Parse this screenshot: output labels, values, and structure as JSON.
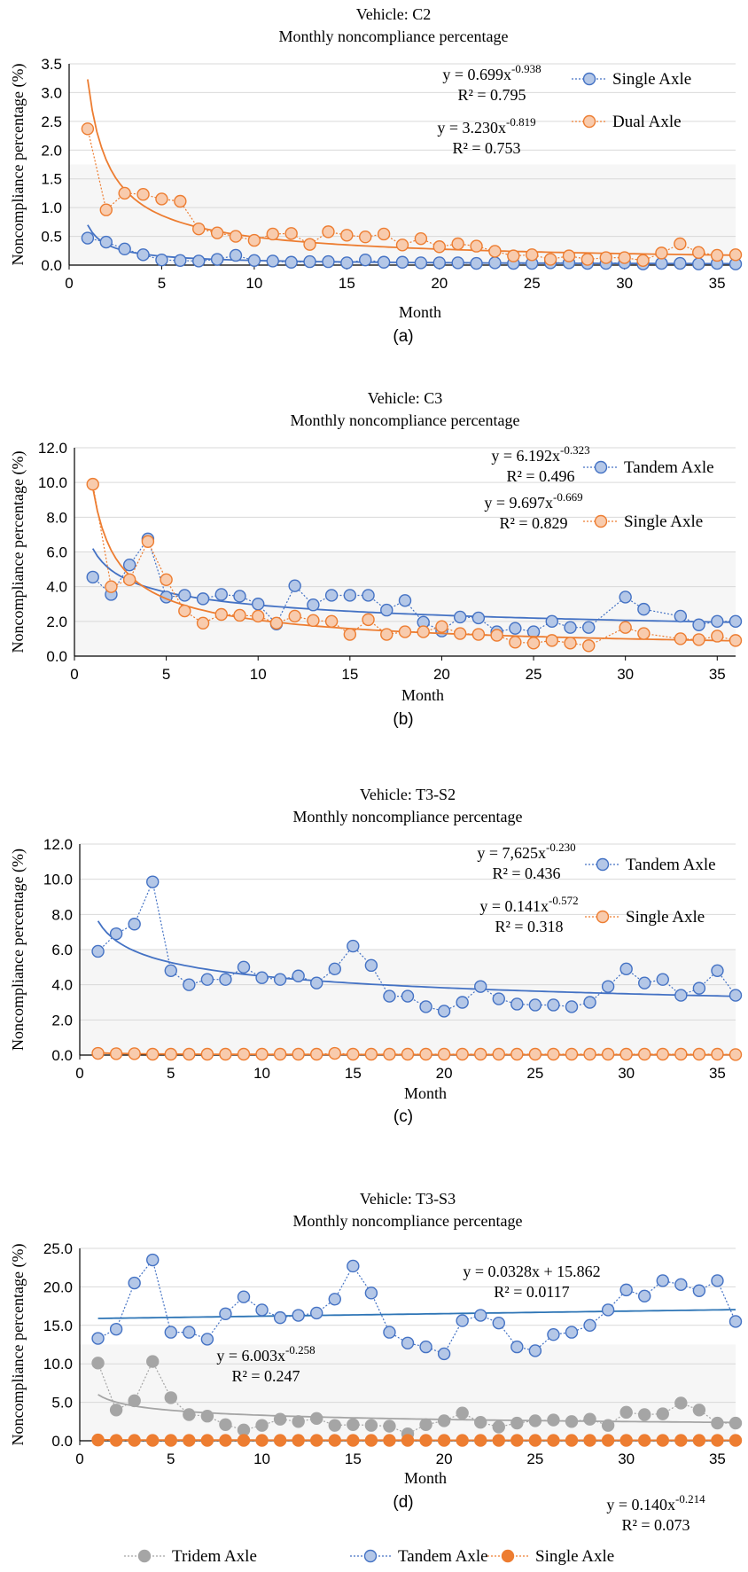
{
  "chart_data": [
    {
      "type": "scatter",
      "panel_label": "(a)",
      "title": "Vehicle: C2",
      "subtitle": "Monthly noncompliance percentage",
      "xlabel": "Month",
      "ylabel": "Noncompliance percentage (%)",
      "xlim": [
        0,
        36
      ],
      "ylim": [
        0,
        3.5
      ],
      "xticks": [
        "0",
        "5",
        "10",
        "15",
        "20",
        "25",
        "30",
        "35"
      ],
      "yticks": [
        "0.0",
        "0.5",
        "1.0",
        "1.5",
        "2.0",
        "2.5",
        "3.0",
        "3.5"
      ],
      "grid": true,
      "legend_placement": "right",
      "series": [
        {
          "name": "Single Axle",
          "color": "#4472c4",
          "fill": "#b4c7e7",
          "x": [
            1,
            2,
            3,
            4,
            5,
            6,
            7,
            8,
            9,
            10,
            11,
            12,
            13,
            14,
            15,
            16,
            17,
            18,
            19,
            20,
            21,
            22,
            23,
            24,
            25,
            26,
            27,
            28,
            29,
            30,
            31,
            32,
            33,
            34,
            35,
            36
          ],
          "values": [
            0.47,
            0.4,
            0.28,
            0.18,
            0.09,
            0.08,
            0.07,
            0.1,
            0.17,
            0.08,
            0.07,
            0.05,
            0.06,
            0.06,
            0.04,
            0.09,
            0.05,
            0.05,
            0.04,
            0.04,
            0.04,
            0.03,
            0.04,
            0.03,
            0.03,
            0.04,
            0.04,
            0.03,
            0.03,
            0.04,
            0.02,
            0.03,
            0.03,
            0.02,
            0.03,
            0.02
          ],
          "trend": {
            "a": 0.699,
            "b": -0.938
          },
          "equation": {
            "pre": "y = 0.699x",
            "exp": "-0.938",
            "r2": "R² = 0.795"
          }
        },
        {
          "name": "Dual Axle",
          "color": "#ed7d31",
          "fill": "#f8cbad",
          "x": [
            1,
            2,
            3,
            4,
            5,
            6,
            7,
            8,
            9,
            10,
            11,
            12,
            13,
            14,
            15,
            16,
            17,
            18,
            19,
            20,
            21,
            22,
            23,
            24,
            25,
            26,
            27,
            28,
            29,
            30,
            31,
            32,
            33,
            34,
            35,
            36
          ],
          "values": [
            2.37,
            0.96,
            1.25,
            1.23,
            1.15,
            1.11,
            0.63,
            0.56,
            0.5,
            0.43,
            0.54,
            0.55,
            0.36,
            0.58,
            0.52,
            0.49,
            0.54,
            0.35,
            0.46,
            0.32,
            0.37,
            0.33,
            0.24,
            0.16,
            0.18,
            0.1,
            0.16,
            0.1,
            0.13,
            0.13,
            0.08,
            0.21,
            0.37,
            0.22,
            0.17,
            0.18
          ],
          "trend": {
            "a": 3.23,
            "b": -0.819
          },
          "equation": {
            "pre": "y = 3.230x",
            "exp": "-0.819",
            "r2": "R² = 0.753"
          }
        }
      ]
    },
    {
      "type": "scatter",
      "panel_label": "(b)",
      "title": "Vehicle: C3",
      "subtitle": "Monthly noncompliance percentage",
      "xlabel": "Month",
      "ylabel": "Noncompliance percentage (%)",
      "xlim": [
        0,
        36
      ],
      "ylim": [
        0,
        12
      ],
      "xticks": [
        "0",
        "5",
        "10",
        "15",
        "20",
        "25",
        "30",
        "35"
      ],
      "yticks": [
        "0.0",
        "2.0",
        "4.0",
        "6.0",
        "8.0",
        "10.0",
        "12.0"
      ],
      "grid": true,
      "legend_placement": "right",
      "series": [
        {
          "name": "Tandem Axle",
          "color": "#4472c4",
          "fill": "#b4c7e7",
          "x": [
            1,
            2,
            3,
            4,
            5,
            6,
            7,
            8,
            9,
            10,
            11,
            12,
            13,
            14,
            15,
            16,
            17,
            18,
            19,
            20,
            21,
            22,
            23,
            24,
            25,
            26,
            27,
            28,
            30,
            31,
            33,
            34,
            35,
            36
          ],
          "values": [
            4.55,
            3.55,
            5.25,
            6.75,
            3.4,
            3.5,
            3.3,
            3.55,
            3.45,
            3.0,
            1.85,
            4.05,
            2.95,
            3.5,
            3.5,
            3.5,
            2.65,
            3.2,
            1.95,
            1.45,
            2.25,
            2.2,
            1.4,
            1.6,
            1.4,
            2.0,
            1.65,
            1.65,
            3.4,
            2.7,
            2.3,
            1.8,
            2.0,
            2.0
          ],
          "trend": {
            "a": 6.192,
            "b": -0.323
          },
          "equation": {
            "pre": "y = 6.192x",
            "exp": "-0.323",
            "r2": "R² = 0.496"
          }
        },
        {
          "name": "Single Axle",
          "color": "#ed7d31",
          "fill": "#f8cbad",
          "x": [
            1,
            2,
            3,
            4,
            5,
            6,
            7,
            8,
            9,
            10,
            11,
            12,
            13,
            14,
            15,
            16,
            17,
            18,
            19,
            20,
            21,
            22,
            23,
            24,
            25,
            26,
            27,
            28,
            30,
            31,
            33,
            34,
            35,
            36
          ],
          "values": [
            9.9,
            4.0,
            4.4,
            6.6,
            4.4,
            2.6,
            1.9,
            2.4,
            2.35,
            2.3,
            1.9,
            2.3,
            2.05,
            2.0,
            1.25,
            2.1,
            1.25,
            1.4,
            1.4,
            1.7,
            1.3,
            1.25,
            1.2,
            0.8,
            0.75,
            0.9,
            0.75,
            0.6,
            1.65,
            1.3,
            1.0,
            0.95,
            1.15,
            0.9
          ],
          "trend": {
            "a": 9.697,
            "b": -0.669
          },
          "equation": {
            "pre": "y = 9.697x",
            "exp": "-0.669",
            "r2": "R² = 0.829"
          }
        }
      ]
    },
    {
      "type": "scatter",
      "panel_label": "(c)",
      "title": "Vehicle: T3-S2",
      "subtitle": "Monthly noncompliance percentage",
      "xlabel": "Month",
      "ylabel": "Noncompliance percentage (%)",
      "xlim": [
        0,
        36
      ],
      "ylim": [
        0,
        12
      ],
      "xticks": [
        "0",
        "5",
        "10",
        "15",
        "20",
        "25",
        "30",
        "35"
      ],
      "yticks": [
        "0.0",
        "2.0",
        "4.0",
        "6.0",
        "8.0",
        "10.0",
        "12.0"
      ],
      "grid": true,
      "legend_placement": "right",
      "series": [
        {
          "name": "Tandem Axle",
          "color": "#4472c4",
          "fill": "#b4c7e7",
          "x": [
            1,
            2,
            3,
            4,
            5,
            6,
            7,
            8,
            9,
            10,
            11,
            12,
            13,
            14,
            15,
            16,
            17,
            18,
            19,
            20,
            21,
            22,
            23,
            24,
            25,
            26,
            27,
            28,
            29,
            30,
            31,
            32,
            33,
            34,
            35,
            36
          ],
          "values": [
            5.9,
            6.9,
            7.45,
            9.85,
            4.8,
            4.0,
            4.3,
            4.3,
            5.0,
            4.4,
            4.3,
            4.5,
            4.1,
            4.9,
            6.2,
            5.1,
            3.35,
            3.35,
            2.75,
            2.5,
            3.0,
            3.9,
            3.2,
            2.9,
            2.85,
            2.85,
            2.75,
            3.0,
            3.9,
            4.9,
            4.1,
            4.3,
            3.4,
            3.8,
            4.8,
            3.4
          ],
          "trend": {
            "a": 7.625,
            "b": -0.23
          },
          "equation": {
            "pre": "y = 7,625x",
            "exp": "-0.230",
            "r2": "R² = 0.436"
          }
        },
        {
          "name": "Single Axle",
          "color": "#ed7d31",
          "fill": "#f8cbad",
          "x": [
            1,
            2,
            3,
            4,
            5,
            6,
            7,
            8,
            9,
            10,
            11,
            12,
            13,
            14,
            15,
            16,
            17,
            18,
            19,
            20,
            21,
            22,
            23,
            24,
            25,
            26,
            27,
            28,
            29,
            30,
            31,
            32,
            33,
            34,
            35,
            36
          ],
          "values": [
            0.1,
            0.08,
            0.08,
            0.05,
            0.05,
            0.05,
            0.05,
            0.05,
            0.05,
            0.05,
            0.05,
            0.05,
            0.05,
            0.1,
            0.05,
            0.05,
            0.05,
            0.05,
            0.05,
            0.05,
            0.05,
            0.05,
            0.05,
            0.05,
            0.05,
            0.05,
            0.05,
            0.05,
            0.05,
            0.05,
            0.05,
            0.05,
            0.05,
            0.05,
            0.05,
            0.03
          ],
          "trend": {
            "a": 0.141,
            "b": -0.572
          },
          "equation": {
            "pre": "y = 0.141x",
            "exp": "-0.572",
            "r2": "R² = 0.318"
          }
        }
      ]
    },
    {
      "type": "scatter",
      "panel_label": "(d)",
      "title": "Vehicle: T3-S3",
      "subtitle": "Monthly noncompliance percentage",
      "xlabel": "Month",
      "ylabel": "Noncompliance percentage (%)",
      "xlim": [
        0,
        36
      ],
      "ylim": [
        0,
        25
      ],
      "xticks": [
        "0",
        "5",
        "10",
        "15",
        "20",
        "25",
        "30",
        "35"
      ],
      "yticks": [
        "0.0",
        "5.0",
        "10.0",
        "15.0",
        "20.0",
        "25.0"
      ],
      "grid": true,
      "legend_placement": "bottom",
      "series": [
        {
          "name": "Tridem Axle",
          "color": "#a5a5a5",
          "fill": "#a5a5a5",
          "x": [
            1,
            2,
            3,
            4,
            5,
            6,
            7,
            8,
            9,
            10,
            11,
            12,
            13,
            14,
            15,
            16,
            17,
            18,
            19,
            20,
            21,
            22,
            23,
            24,
            25,
            26,
            27,
            28,
            29,
            30,
            31,
            32,
            33,
            34,
            35,
            36
          ],
          "values": [
            10.1,
            4.0,
            5.2,
            10.3,
            5.6,
            3.4,
            3.2,
            2.1,
            1.4,
            2.0,
            2.8,
            2.5,
            2.9,
            2.0,
            2.1,
            2.0,
            1.9,
            0.9,
            2.1,
            2.6,
            3.6,
            2.4,
            1.8,
            2.3,
            2.6,
            2.7,
            2.5,
            2.8,
            2.0,
            3.7,
            3.4,
            3.5,
            4.9,
            4.0,
            2.3,
            2.3
          ],
          "trend": {
            "a": 6.003,
            "b": -0.258
          },
          "equation": {
            "pre": "y = 6.003x",
            "exp": "-0.258",
            "r2": "R² = 0.247"
          }
        },
        {
          "name": "Tandem Axle",
          "color": "#4472c4",
          "fill": "#b4c7e7",
          "x": [
            1,
            2,
            3,
            4,
            5,
            6,
            7,
            8,
            9,
            10,
            11,
            12,
            13,
            14,
            15,
            16,
            17,
            18,
            19,
            20,
            21,
            22,
            23,
            24,
            25,
            26,
            27,
            28,
            29,
            30,
            31,
            32,
            33,
            34,
            35,
            36
          ],
          "values": [
            13.3,
            14.5,
            20.5,
            23.5,
            14.1,
            14.1,
            13.2,
            16.5,
            18.7,
            17.0,
            16.0,
            16.3,
            16.6,
            18.4,
            22.7,
            19.2,
            14.1,
            12.7,
            12.2,
            11.3,
            15.6,
            16.3,
            15.3,
            12.2,
            11.7,
            13.8,
            14.1,
            15.0,
            17.0,
            19.6,
            18.8,
            20.8,
            20.3,
            19.5,
            20.8,
            15.5
          ],
          "trend": {
            "slope": 0.0328,
            "intercept": 15.862
          },
          "equation": {
            "pre": "y = 0.0328x + 15.862",
            "exp": "",
            "r2": "R² = 0.0117"
          }
        },
        {
          "name": "Single Axle",
          "color": "#ed7d31",
          "fill": "#ed7d31",
          "x": [
            1,
            2,
            3,
            4,
            5,
            6,
            7,
            8,
            9,
            10,
            11,
            12,
            13,
            14,
            15,
            16,
            17,
            18,
            19,
            20,
            21,
            22,
            23,
            24,
            25,
            26,
            27,
            28,
            29,
            30,
            31,
            32,
            33,
            34,
            35,
            36
          ],
          "values": [
            0.1,
            0.05,
            0.05,
            0.05,
            0.05,
            0.05,
            0.05,
            0.05,
            0.05,
            0.05,
            0.05,
            0.05,
            0.05,
            0.05,
            0.05,
            0.05,
            0.05,
            0.05,
            0.05,
            0.05,
            0.05,
            0.05,
            0.05,
            0.05,
            0.05,
            0.05,
            0.05,
            0.05,
            0.05,
            0.05,
            0.05,
            0.05,
            0.05,
            0.05,
            0.05,
            0.05
          ],
          "trend": {
            "a": 0.14,
            "b": -0.214
          },
          "equation": {
            "pre": "y = 0.140x",
            "exp": "-0.214",
            "r2": "R² = 0.073"
          }
        }
      ]
    }
  ]
}
